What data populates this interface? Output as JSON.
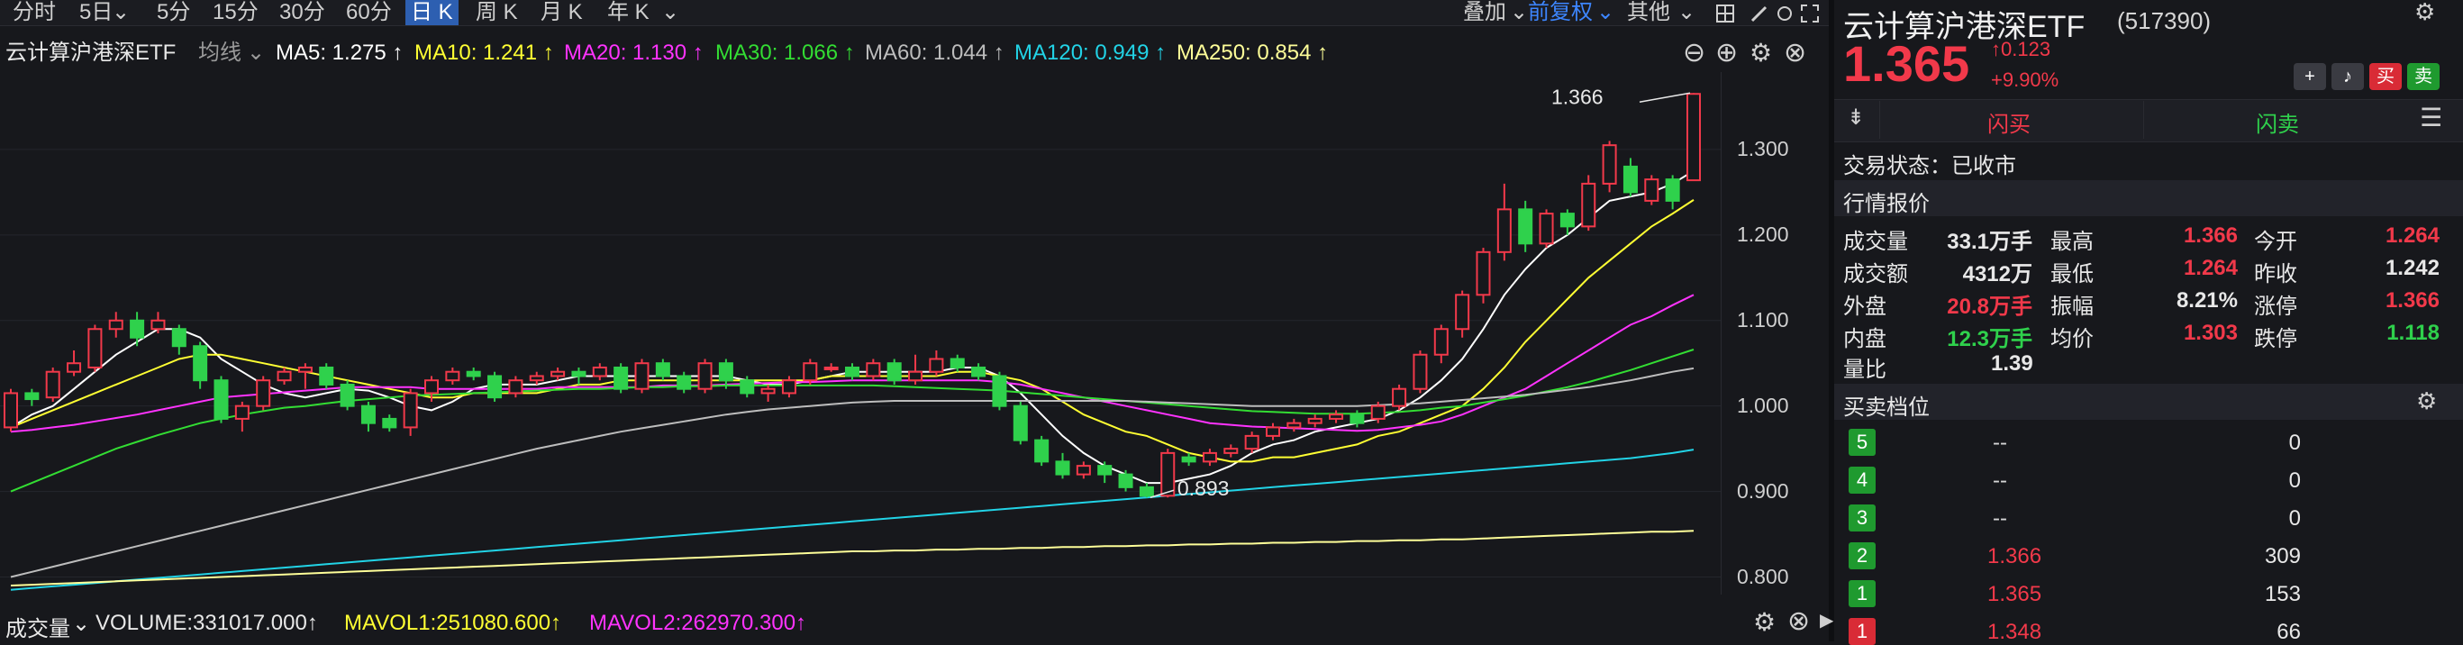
{
  "toolbar": {
    "periods": [
      "分时",
      "5日",
      "5分",
      "15分",
      "30分",
      "60分",
      "日 K",
      "周 K",
      "月 K",
      "年 K"
    ],
    "active_period": "日 K",
    "right_items": [
      "叠加",
      "前复权",
      "其他"
    ]
  },
  "header": {
    "name": "云计算沪港深ETF",
    "ma_type": "均线",
    "ma": [
      {
        "label": "MA5: 1.275 ↑",
        "color": "#ffffff"
      },
      {
        "label": "MA10: 1.241 ↑",
        "color": "#ffff33"
      },
      {
        "label": "MA20: 1.130 ↑",
        "color": "#ff33ff"
      },
      {
        "label": "MA30: 1.066 ↑",
        "color": "#33dd33"
      },
      {
        "label": "MA60: 1.044 ↑",
        "color": "#bdbdbd"
      },
      {
        "label": "MA120: 0.949 ↑",
        "color": "#22d3e6"
      },
      {
        "label": "MA250: 0.854 ↑",
        "color": "#ffff99"
      }
    ]
  },
  "volume_bar": {
    "title": "成交量",
    "volume": "VOLUME:331017.000↑",
    "mavol1": "MAVOL1:251080.600↑",
    "mavol2": "MAVOL2:262970.300↑"
  },
  "chart_data": {
    "type": "candlestick",
    "ylim": [
      0.79,
      1.38
    ],
    "yticks": [
      "1.300",
      "1.200",
      "1.100",
      "1.000",
      "0.900",
      "0.800"
    ],
    "ytick_values": [
      1.3,
      1.2,
      1.1,
      1.0,
      0.9,
      0.8
    ],
    "annotations": [
      {
        "text": "1.366",
        "value": 1.366
      },
      {
        "text": "0.893",
        "value": 0.893
      }
    ],
    "candles": [
      [
        0.975,
        1.015,
        0.97,
        1.02
      ],
      [
        1.015,
        1.008,
        1.0,
        1.02
      ],
      [
        1.01,
        1.04,
        1.005,
        1.045
      ],
      [
        1.04,
        1.05,
        1.035,
        1.065
      ],
      [
        1.045,
        1.09,
        1.04,
        1.095
      ],
      [
        1.09,
        1.1,
        1.08,
        1.11
      ],
      [
        1.1,
        1.08,
        1.07,
        1.11
      ],
      [
        1.09,
        1.1,
        1.085,
        1.11
      ],
      [
        1.09,
        1.07,
        1.06,
        1.095
      ],
      [
        1.07,
        1.03,
        1.02,
        1.075
      ],
      [
        1.03,
        0.985,
        0.98,
        1.035
      ],
      [
        0.985,
        1.0,
        0.97,
        1.005
      ],
      [
        1.0,
        1.03,
        0.995,
        1.035
      ],
      [
        1.03,
        1.04,
        1.025,
        1.045
      ],
      [
        1.04,
        1.045,
        1.02,
        1.05
      ],
      [
        1.045,
        1.025,
        1.02,
        1.05
      ],
      [
        1.025,
        1.0,
        0.995,
        1.03
      ],
      [
        1.0,
        0.98,
        0.97,
        1.005
      ],
      [
        0.985,
        0.975,
        0.97,
        0.99
      ],
      [
        0.975,
        1.015,
        0.965,
        1.02
      ],
      [
        1.015,
        1.03,
        1.005,
        1.035
      ],
      [
        1.03,
        1.04,
        1.025,
        1.045
      ],
      [
        1.04,
        1.035,
        1.03,
        1.045
      ],
      [
        1.035,
        1.01,
        1.005,
        1.04
      ],
      [
        1.015,
        1.03,
        1.01,
        1.035
      ],
      [
        1.03,
        1.035,
        1.025,
        1.04
      ],
      [
        1.035,
        1.04,
        1.03,
        1.045
      ],
      [
        1.04,
        1.035,
        1.025,
        1.045
      ],
      [
        1.035,
        1.045,
        1.03,
        1.05
      ],
      [
        1.045,
        1.02,
        1.015,
        1.05
      ],
      [
        1.02,
        1.05,
        1.015,
        1.055
      ],
      [
        1.05,
        1.035,
        1.03,
        1.055
      ],
      [
        1.035,
        1.02,
        1.015,
        1.04
      ],
      [
        1.02,
        1.05,
        1.015,
        1.055
      ],
      [
        1.05,
        1.03,
        1.02,
        1.055
      ],
      [
        1.03,
        1.015,
        1.01,
        1.035
      ],
      [
        1.015,
        1.02,
        1.005,
        1.025
      ],
      [
        1.015,
        1.03,
        1.01,
        1.035
      ],
      [
        1.03,
        1.05,
        1.025,
        1.055
      ],
      [
        1.045,
        1.045,
        1.04,
        1.05
      ],
      [
        1.045,
        1.035,
        1.03,
        1.05
      ],
      [
        1.035,
        1.05,
        1.03,
        1.055
      ],
      [
        1.05,
        1.03,
        1.025,
        1.055
      ],
      [
        1.03,
        1.04,
        1.025,
        1.06
      ],
      [
        1.04,
        1.055,
        1.035,
        1.065
      ],
      [
        1.055,
        1.045,
        1.04,
        1.06
      ],
      [
        1.045,
        1.035,
        1.03,
        1.05
      ],
      [
        1.035,
        1.0,
        0.995,
        1.04
      ],
      [
        1.0,
        0.96,
        0.955,
        1.005
      ],
      [
        0.96,
        0.935,
        0.93,
        0.965
      ],
      [
        0.935,
        0.92,
        0.915,
        0.945
      ],
      [
        0.92,
        0.93,
        0.915,
        0.935
      ],
      [
        0.93,
        0.92,
        0.91,
        0.935
      ],
      [
        0.92,
        0.905,
        0.9,
        0.925
      ],
      [
        0.905,
        0.895,
        0.893,
        0.91
      ],
      [
        0.895,
        0.945,
        0.893,
        0.95
      ],
      [
        0.94,
        0.935,
        0.93,
        0.945
      ],
      [
        0.935,
        0.945,
        0.93,
        0.95
      ],
      [
        0.945,
        0.95,
        0.94,
        0.955
      ],
      [
        0.95,
        0.965,
        0.945,
        0.97
      ],
      [
        0.965,
        0.975,
        0.96,
        0.98
      ],
      [
        0.975,
        0.98,
        0.97,
        0.985
      ],
      [
        0.98,
        0.985,
        0.975,
        0.99
      ],
      [
        0.985,
        0.99,
        0.98,
        0.995
      ],
      [
        0.99,
        0.98,
        0.975,
        0.995
      ],
      [
        0.985,
        1.0,
        0.98,
        1.005
      ],
      [
        1.0,
        1.02,
        0.995,
        1.025
      ],
      [
        1.02,
        1.06,
        1.015,
        1.065
      ],
      [
        1.06,
        1.09,
        1.05,
        1.095
      ],
      [
        1.09,
        1.13,
        1.08,
        1.135
      ],
      [
        1.13,
        1.18,
        1.12,
        1.185
      ],
      [
        1.18,
        1.23,
        1.17,
        1.26
      ],
      [
        1.23,
        1.19,
        1.18,
        1.24
      ],
      [
        1.19,
        1.225,
        1.185,
        1.23
      ],
      [
        1.225,
        1.21,
        1.2,
        1.23
      ],
      [
        1.21,
        1.26,
        1.205,
        1.27
      ],
      [
        1.26,
        1.305,
        1.25,
        1.31
      ],
      [
        1.28,
        1.25,
        1.245,
        1.29
      ],
      [
        1.24,
        1.265,
        1.235,
        1.27
      ],
      [
        1.265,
        1.24,
        1.23,
        1.27
      ],
      [
        1.264,
        1.365,
        1.264,
        1.366
      ]
    ],
    "series": [
      {
        "name": "MA5",
        "color": "#ffffff",
        "values": [
          0.975,
          0.99,
          1.0,
          1.02,
          1.04,
          1.06,
          1.075,
          1.09,
          1.09,
          1.08,
          1.055,
          1.04,
          1.025,
          1.015,
          1.01,
          1.015,
          1.02,
          1.018,
          1.01,
          1.0,
          0.995,
          1.005,
          1.02,
          1.025,
          1.025,
          1.025,
          1.03,
          1.035,
          1.035,
          1.035,
          1.035,
          1.035,
          1.035,
          1.035,
          1.035,
          1.03,
          1.025,
          1.025,
          1.03,
          1.035,
          1.04,
          1.04,
          1.04,
          1.04,
          1.04,
          1.045,
          1.045,
          1.035,
          1.015,
          0.99,
          0.965,
          0.945,
          0.93,
          0.92,
          0.91,
          0.91,
          0.915,
          0.92,
          0.93,
          0.945,
          0.955,
          0.96,
          0.97,
          0.975,
          0.98,
          0.985,
          0.995,
          1.01,
          1.03,
          1.055,
          1.09,
          1.13,
          1.16,
          1.185,
          1.2,
          1.22,
          1.24,
          1.245,
          1.25,
          1.26,
          1.275
        ]
      },
      {
        "name": "MA10",
        "color": "#ffff33",
        "values": [
          0.975,
          0.985,
          0.995,
          1.005,
          1.015,
          1.025,
          1.035,
          1.045,
          1.055,
          1.06,
          1.06,
          1.055,
          1.05,
          1.045,
          1.04,
          1.035,
          1.03,
          1.025,
          1.02,
          1.015,
          1.01,
          1.01,
          1.015,
          1.015,
          1.015,
          1.015,
          1.02,
          1.025,
          1.025,
          1.03,
          1.03,
          1.03,
          1.03,
          1.03,
          1.03,
          1.03,
          1.03,
          1.03,
          1.03,
          1.035,
          1.035,
          1.035,
          1.035,
          1.035,
          1.035,
          1.04,
          1.04,
          1.035,
          1.03,
          1.02,
          1.005,
          0.99,
          0.98,
          0.97,
          0.965,
          0.955,
          0.945,
          0.94,
          0.935,
          0.935,
          0.94,
          0.94,
          0.945,
          0.95,
          0.955,
          0.965,
          0.97,
          0.98,
          0.99,
          1.0,
          1.02,
          1.045,
          1.075,
          1.1,
          1.125,
          1.15,
          1.17,
          1.19,
          1.21,
          1.225,
          1.241
        ]
      },
      {
        "name": "MA20",
        "color": "#ff33ff",
        "values": [
          0.97,
          0.972,
          0.975,
          0.978,
          0.982,
          0.986,
          0.99,
          0.995,
          1.0,
          1.005,
          1.01,
          1.012,
          1.014,
          1.016,
          1.018,
          1.02,
          1.022,
          1.022,
          1.022,
          1.022,
          1.02,
          1.02,
          1.02,
          1.02,
          1.02,
          1.02,
          1.022,
          1.022,
          1.022,
          1.022,
          1.022,
          1.024,
          1.024,
          1.024,
          1.025,
          1.026,
          1.027,
          1.028,
          1.028,
          1.029,
          1.03,
          1.03,
          1.03,
          1.03,
          1.03,
          1.03,
          1.03,
          1.028,
          1.025,
          1.02,
          1.015,
          1.01,
          1.005,
          1.0,
          0.995,
          0.99,
          0.985,
          0.98,
          0.978,
          0.976,
          0.975,
          0.974,
          0.973,
          0.972,
          0.971,
          0.972,
          0.975,
          0.978,
          0.982,
          0.99,
          1.0,
          1.01,
          1.02,
          1.035,
          1.05,
          1.065,
          1.08,
          1.095,
          1.105,
          1.118,
          1.13
        ]
      },
      {
        "name": "MA30",
        "color": "#33dd33",
        "values": [
          0.9,
          0.91,
          0.92,
          0.93,
          0.94,
          0.95,
          0.958,
          0.966,
          0.973,
          0.98,
          0.985,
          0.99,
          0.994,
          0.998,
          1.0,
          1.003,
          1.006,
          1.008,
          1.01,
          1.012,
          1.013,
          1.014,
          1.015,
          1.016,
          1.017,
          1.018,
          1.019,
          1.02,
          1.02,
          1.021,
          1.022,
          1.022,
          1.023,
          1.023,
          1.024,
          1.024,
          1.024,
          1.024,
          1.024,
          1.024,
          1.024,
          1.024,
          1.023,
          1.022,
          1.021,
          1.02,
          1.019,
          1.018,
          1.016,
          1.014,
          1.012,
          1.01,
          1.008,
          1.006,
          1.004,
          1.002,
          1.0,
          0.998,
          0.996,
          0.994,
          0.993,
          0.992,
          0.991,
          0.991,
          0.991,
          0.992,
          0.993,
          0.995,
          0.998,
          1.0,
          1.004,
          1.008,
          1.012,
          1.017,
          1.022,
          1.028,
          1.035,
          1.042,
          1.05,
          1.058,
          1.066
        ]
      },
      {
        "name": "MA60",
        "color": "#bdbdbd",
        "values": [
          0.8,
          0.806,
          0.812,
          0.818,
          0.824,
          0.83,
          0.836,
          0.842,
          0.848,
          0.854,
          0.86,
          0.866,
          0.872,
          0.878,
          0.884,
          0.89,
          0.896,
          0.902,
          0.908,
          0.914,
          0.92,
          0.926,
          0.932,
          0.938,
          0.944,
          0.95,
          0.955,
          0.96,
          0.965,
          0.97,
          0.974,
          0.978,
          0.982,
          0.986,
          0.99,
          0.993,
          0.996,
          0.998,
          1.0,
          1.002,
          1.004,
          1.005,
          1.006,
          1.006,
          1.006,
          1.006,
          1.006,
          1.006,
          1.006,
          1.006,
          1.006,
          1.006,
          1.006,
          1.006,
          1.005,
          1.004,
          1.003,
          1.002,
          1.001,
          1.0,
          1.0,
          1.0,
          1.0,
          1.0,
          1.0,
          1.001,
          1.002,
          1.003,
          1.005,
          1.007,
          1.009,
          1.011,
          1.013,
          1.016,
          1.019,
          1.022,
          1.026,
          1.03,
          1.035,
          1.04,
          1.044
        ]
      },
      {
        "name": "MA120",
        "color": "#22d3e6",
        "values": [
          0.785,
          0.787,
          0.789,
          0.791,
          0.793,
          0.795,
          0.797,
          0.799,
          0.801,
          0.803,
          0.805,
          0.807,
          0.809,
          0.811,
          0.813,
          0.815,
          0.817,
          0.819,
          0.821,
          0.823,
          0.825,
          0.827,
          0.829,
          0.831,
          0.833,
          0.835,
          0.837,
          0.839,
          0.841,
          0.843,
          0.845,
          0.847,
          0.849,
          0.851,
          0.853,
          0.855,
          0.857,
          0.859,
          0.861,
          0.863,
          0.865,
          0.867,
          0.869,
          0.871,
          0.873,
          0.875,
          0.877,
          0.879,
          0.881,
          0.883,
          0.885,
          0.887,
          0.889,
          0.891,
          0.893,
          0.895,
          0.897,
          0.899,
          0.901,
          0.903,
          0.905,
          0.907,
          0.909,
          0.911,
          0.913,
          0.915,
          0.917,
          0.919,
          0.921,
          0.923,
          0.925,
          0.927,
          0.929,
          0.931,
          0.933,
          0.935,
          0.937,
          0.939,
          0.942,
          0.945,
          0.949
        ]
      },
      {
        "name": "MA250",
        "color": "#ffff99",
        "values": [
          0.79,
          0.791,
          0.792,
          0.793,
          0.794,
          0.795,
          0.796,
          0.797,
          0.798,
          0.799,
          0.8,
          0.801,
          0.802,
          0.803,
          0.804,
          0.805,
          0.806,
          0.807,
          0.808,
          0.809,
          0.81,
          0.811,
          0.812,
          0.813,
          0.814,
          0.815,
          0.816,
          0.817,
          0.818,
          0.819,
          0.82,
          0.821,
          0.822,
          0.823,
          0.824,
          0.825,
          0.826,
          0.827,
          0.828,
          0.829,
          0.83,
          0.83,
          0.831,
          0.831,
          0.832,
          0.832,
          0.833,
          0.833,
          0.834,
          0.834,
          0.835,
          0.835,
          0.836,
          0.836,
          0.837,
          0.837,
          0.838,
          0.838,
          0.839,
          0.839,
          0.84,
          0.84,
          0.841,
          0.841,
          0.842,
          0.842,
          0.843,
          0.843,
          0.844,
          0.844,
          0.845,
          0.846,
          0.847,
          0.848,
          0.849,
          0.85,
          0.851,
          0.852,
          0.853,
          0.853,
          0.854
        ]
      }
    ]
  },
  "quote": {
    "name": "云计算沪港深ETF",
    "code": "(517390)",
    "price": "1.365",
    "change": "↑0.123",
    "change_pct": "+9.90%",
    "buy_flash": "闪买",
    "sell_flash": "闪卖",
    "btn_buy": "买",
    "btn_sell": "卖",
    "status": "交易状态：已收市",
    "section_quote": "行情报价",
    "stats": [
      {
        "l1": "成交量",
        "v1": "33.1万手",
        "c1": "white",
        "l2": "最高",
        "v2": "1.366",
        "c2": "red",
        "l3": "今开",
        "v3": "1.264",
        "c3": "red"
      },
      {
        "l1": "成交额",
        "v1": "4312万",
        "c1": "white",
        "l2": "最低",
        "v2": "1.264",
        "c2": "red",
        "l3": "昨收",
        "v3": "1.242",
        "c3": "white"
      },
      {
        "l1": "外盘",
        "v1": "20.8万手",
        "c1": "red",
        "l2": "振幅",
        "v2": "8.21%",
        "c2": "white",
        "l3": "涨停",
        "v3": "1.366",
        "c3": "red"
      },
      {
        "l1": "内盘",
        "v1": "12.3万手",
        "c1": "green",
        "l2": "均价",
        "v2": "1.303",
        "c2": "red",
        "l3": "跌停",
        "v3": "1.118",
        "c3": "green"
      }
    ],
    "ratio_label": "量比",
    "ratio_value": "1.39",
    "section_levels": "买卖档位",
    "levels": [
      {
        "n": "5",
        "price": "--",
        "vol": "0",
        "color": "#1f9a2f"
      },
      {
        "n": "4",
        "price": "--",
        "vol": "0",
        "color": "#1f9a2f"
      },
      {
        "n": "3",
        "price": "--",
        "vol": "0",
        "color": "#1f9a2f"
      },
      {
        "n": "2",
        "price": "1.366",
        "vol": "309",
        "color": "#1f9a2f"
      },
      {
        "n": "1",
        "price": "1.365",
        "vol": "153",
        "color": "#1f9a2f"
      },
      {
        "n": "1",
        "price": "1.348",
        "vol": "66",
        "color": "#d92b36"
      }
    ]
  }
}
